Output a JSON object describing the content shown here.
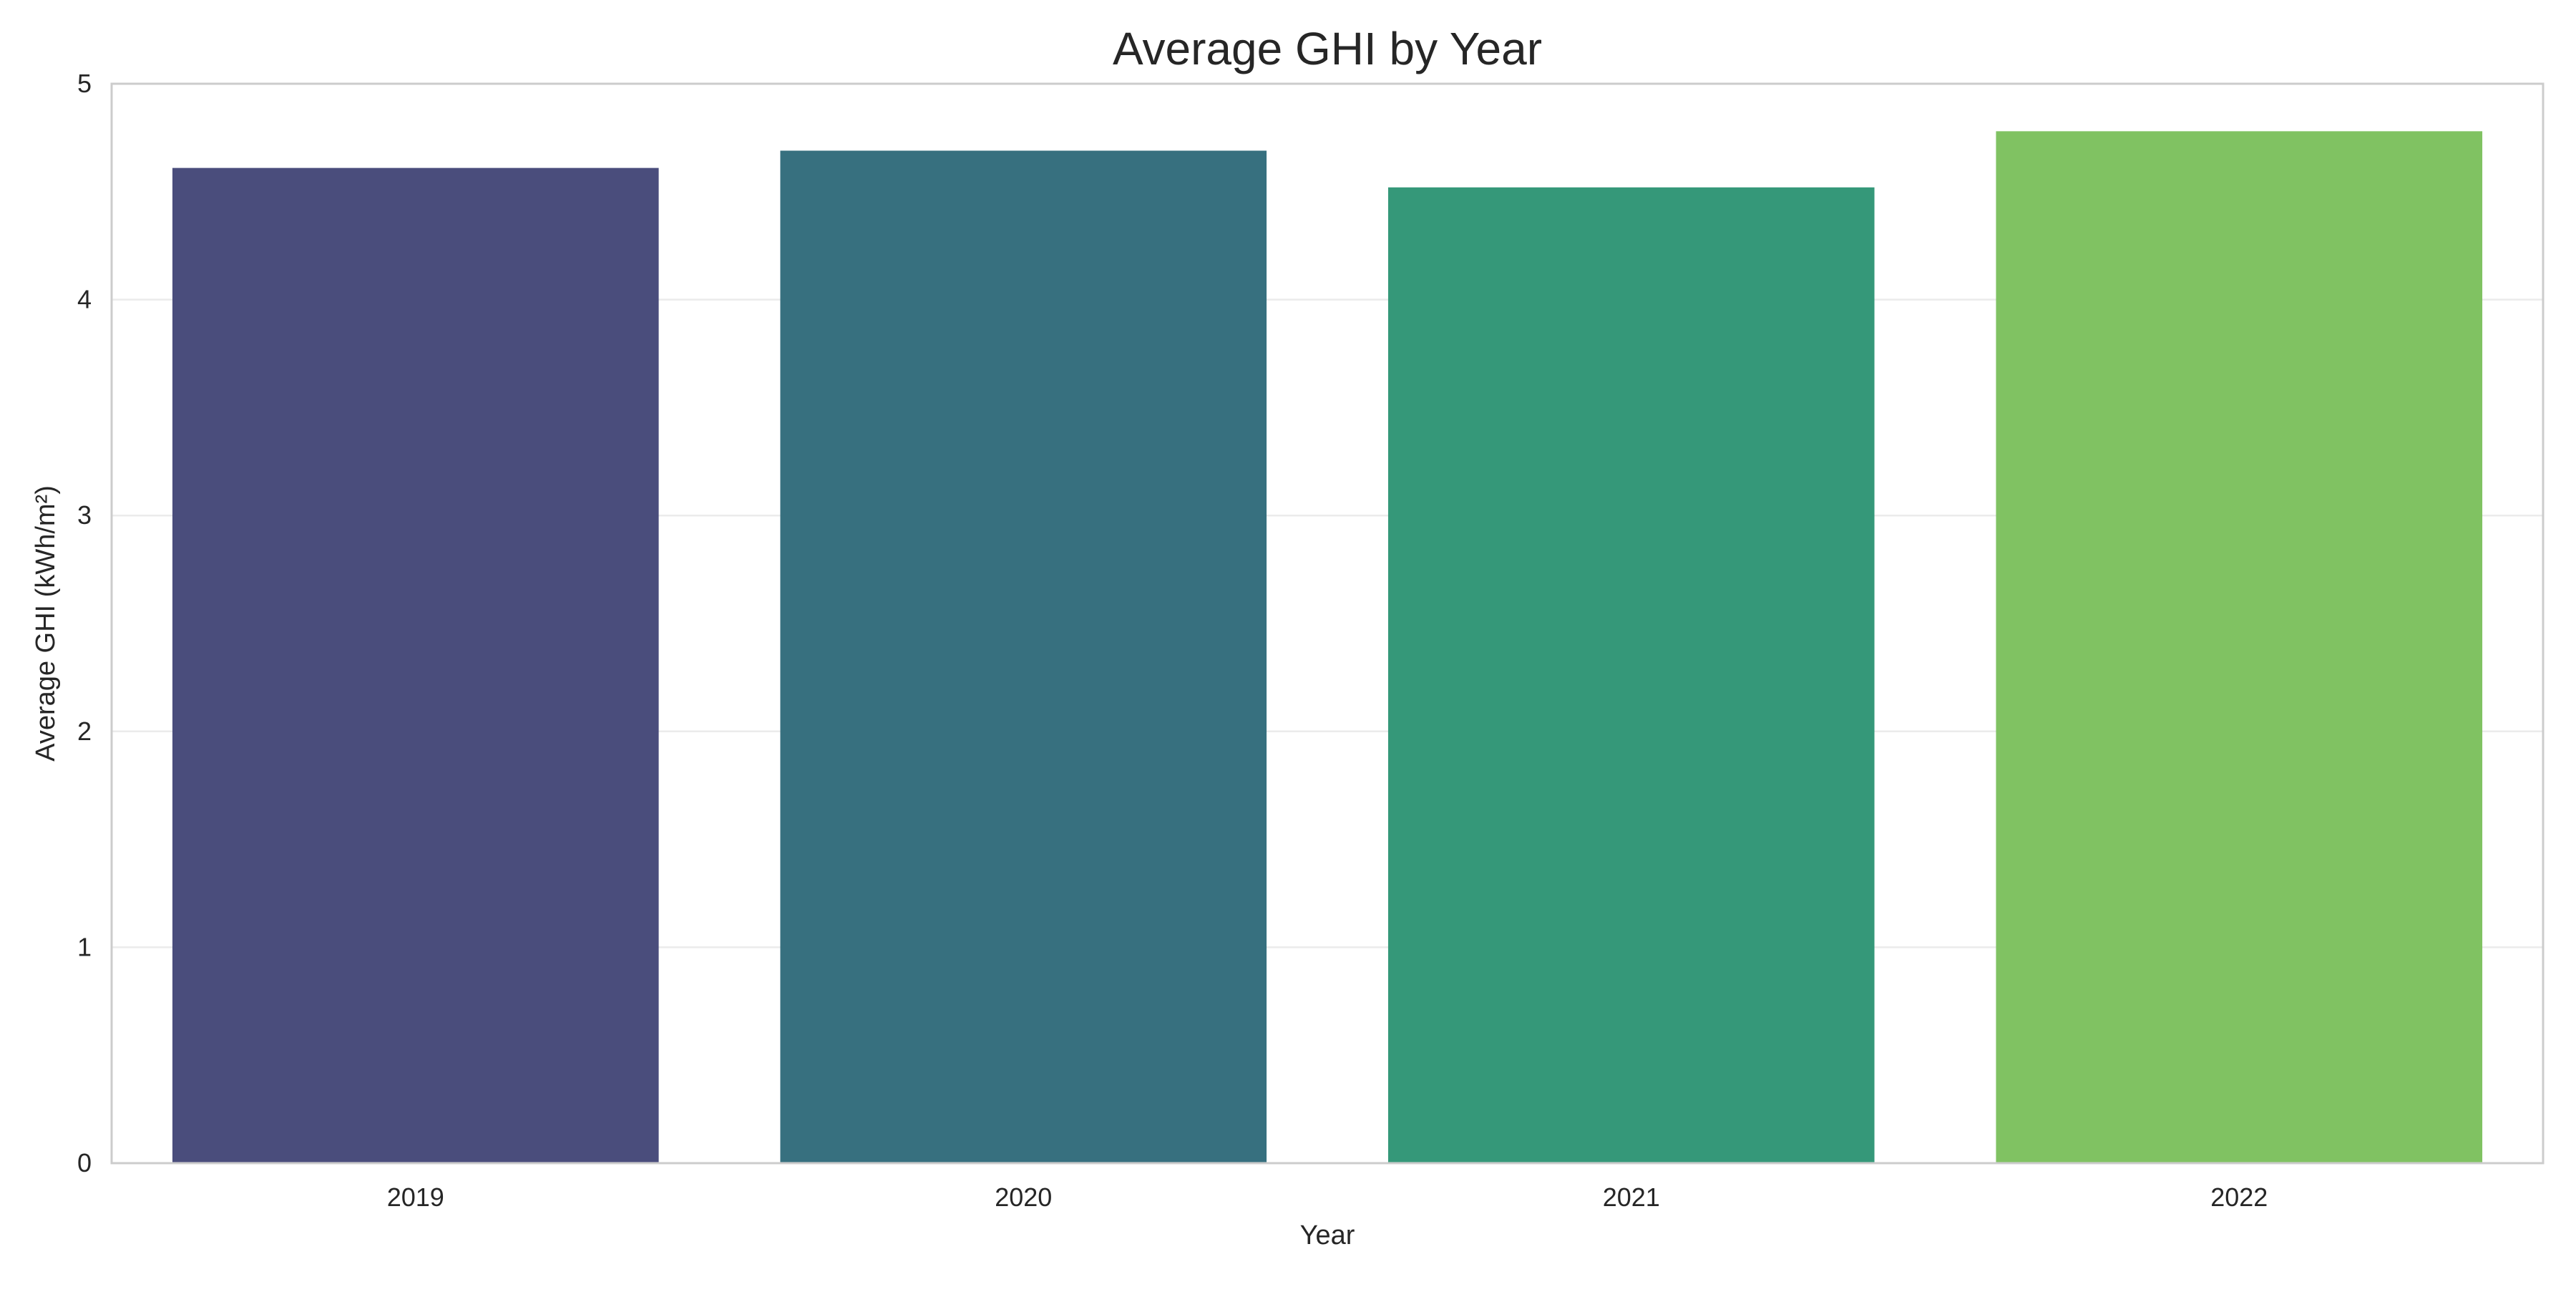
{
  "chart_data": {
    "type": "bar",
    "title": "Average GHI by Year",
    "xlabel": "Year",
    "ylabel": "Average GHI (kWh/m²)",
    "categories": [
      "2019",
      "2020",
      "2021",
      "2022"
    ],
    "values": [
      4.61,
      4.69,
      4.52,
      4.78
    ],
    "colors": [
      "#4a4d7c",
      "#37707f",
      "#359879",
      "#80c262"
    ],
    "ylim": [
      0,
      5
    ],
    "yticks": [
      "0",
      "1",
      "2",
      "3",
      "4",
      "5"
    ],
    "grid": "horizontal",
    "legend": "none"
  }
}
